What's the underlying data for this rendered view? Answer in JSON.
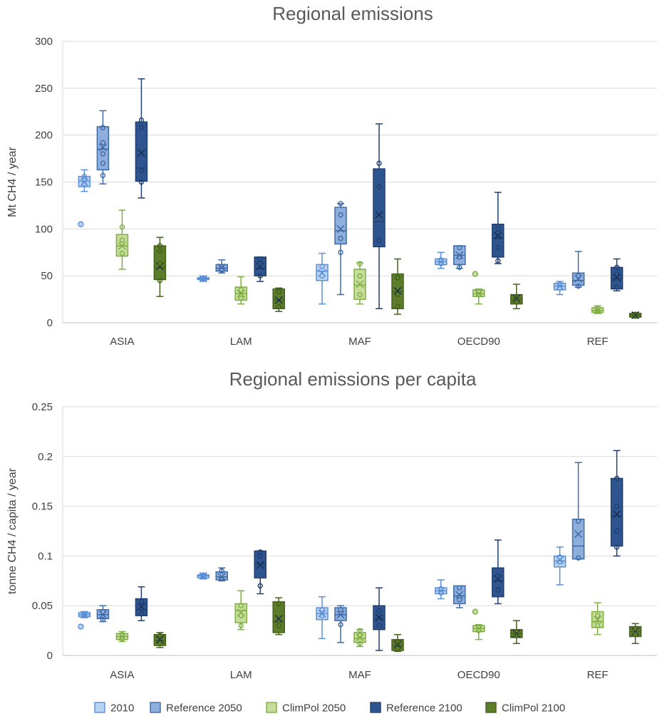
{
  "legend": [
    {
      "name": "2010",
      "fill": "#b8d3f2",
      "stroke": "#5b8fd6"
    },
    {
      "name": "Reference 2050",
      "fill": "#8eaedb",
      "stroke": "#3f6aa8"
    },
    {
      "name": "ClimPol 2050",
      "fill": "#c6dd9a",
      "stroke": "#7fae45"
    },
    {
      "name": "Reference 2100",
      "fill": "#2e558f",
      "stroke": "#203f6e"
    },
    {
      "name": "ClimPol 2100",
      "fill": "#5d7d2b",
      "stroke": "#44601c"
    }
  ],
  "chart_data": [
    {
      "type": "box",
      "title": "Regional emissions",
      "ylabel": "Mt CH4 / year",
      "ylim": [
        0,
        300
      ],
      "yticks": [
        "0",
        "50",
        "100",
        "150",
        "200",
        "250",
        "300"
      ],
      "ytick_values": [
        0,
        50,
        100,
        150,
        200,
        250,
        300
      ],
      "categories": [
        "ASIA",
        "LAM",
        "MAF",
        "OECD90",
        "REF"
      ],
      "grid": true,
      "series": [
        {
          "name": "2010",
          "boxes": [
            {
              "min": 140,
              "q1": 145,
              "median": 151,
              "q3": 156,
              "max": 163,
              "mean": 150,
              "points": [
                148,
                153,
                156
              ],
              "outliers": [
                105
              ]
            },
            {
              "min": 45,
              "q1": 46,
              "median": 47,
              "q3": 48,
              "max": 49,
              "mean": 47,
              "points": [
                46,
                48
              ],
              "outliers": []
            },
            {
              "min": 20,
              "q1": 45,
              "median": 55,
              "q3": 62,
              "max": 74,
              "mean": 53,
              "points": [
                50,
                60
              ],
              "outliers": []
            },
            {
              "min": 58,
              "q1": 62,
              "median": 65,
              "q3": 68,
              "max": 75,
              "mean": 65,
              "points": [
                63,
                67
              ],
              "outliers": []
            },
            {
              "min": 30,
              "q1": 35,
              "median": 39,
              "q3": 42,
              "max": 44,
              "mean": 39,
              "points": [
                37,
                41
              ],
              "outliers": []
            }
          ]
        },
        {
          "name": "Reference 2050",
          "boxes": [
            {
              "min": 148,
              "q1": 163,
              "median": 185,
              "q3": 209,
              "max": 226,
              "mean": 187,
              "points": [
                157,
                170,
                180,
                192,
                208
              ],
              "outliers": []
            },
            {
              "min": 53,
              "q1": 55,
              "median": 58,
              "q3": 62,
              "max": 67,
              "mean": 59,
              "points": [
                56,
                60
              ],
              "outliers": []
            },
            {
              "min": 30,
              "q1": 84,
              "median": 98,
              "q3": 123,
              "max": 127,
              "mean": 100,
              "points": [
                75,
                90,
                115,
                127
              ],
              "outliers": []
            },
            {
              "min": 58,
              "q1": 62,
              "median": 72,
              "q3": 82,
              "max": 82,
              "mean": 72,
              "points": [
                59,
                70,
                80
              ],
              "outliers": []
            },
            {
              "min": 38,
              "q1": 40,
              "median": 45,
              "q3": 53,
              "max": 76,
              "mean": 47,
              "points": [
                39,
                50
              ],
              "outliers": []
            }
          ]
        },
        {
          "name": "ClimPol 2050",
          "boxes": [
            {
              "min": 57,
              "q1": 71,
              "median": 82,
              "q3": 94,
              "max": 120,
              "mean": 82,
              "points": [
                74,
                88,
                102
              ],
              "outliers": []
            },
            {
              "min": 20,
              "q1": 24,
              "median": 31,
              "q3": 38,
              "max": 49,
              "mean": 31,
              "points": [
                26,
                35
              ],
              "outliers": []
            },
            {
              "min": 20,
              "q1": 25,
              "median": 40,
              "q3": 57,
              "max": 64,
              "mean": 41,
              "points": [
                30,
                50,
                63
              ],
              "outliers": []
            },
            {
              "min": 20,
              "q1": 28,
              "median": 31,
              "q3": 35,
              "max": 36,
              "mean": 31,
              "points": [
                30,
                33
              ],
              "outliers": [
                52
              ]
            },
            {
              "min": 10,
              "q1": 11,
              "median": 13,
              "q3": 16,
              "max": 18,
              "mean": 13,
              "points": [
                12,
                15
              ],
              "outliers": []
            }
          ]
        },
        {
          "name": "Reference 2100",
          "boxes": [
            {
              "min": 133,
              "q1": 151,
              "median": 165,
              "q3": 214,
              "max": 260,
              "mean": 181,
              "points": [
                150,
                162,
                208,
                216
              ],
              "outliers": []
            },
            {
              "min": 44,
              "q1": 50,
              "median": 58,
              "q3": 70,
              "max": 70,
              "mean": 60,
              "points": [
                50,
                63,
                68
              ],
              "outliers": []
            },
            {
              "min": 15,
              "q1": 81,
              "median": 108,
              "q3": 164,
              "max": 212,
              "mean": 115,
              "points": [
                88,
                145,
                170
              ],
              "outliers": []
            },
            {
              "min": 63,
              "q1": 70,
              "median": 90,
              "q3": 105,
              "max": 139,
              "mean": 93,
              "points": [
                66,
                80,
                100
              ],
              "outliers": []
            },
            {
              "min": 34,
              "q1": 36,
              "median": 47,
              "q3": 59,
              "max": 68,
              "mean": 48,
              "points": [
                38,
                52,
                59
              ],
              "outliers": []
            }
          ]
        },
        {
          "name": "ClimPol 2100",
          "boxes": [
            {
              "min": 28,
              "q1": 46,
              "median": 59,
              "q3": 82,
              "max": 91,
              "mean": 60,
              "points": [
                45,
                63,
                76,
                82
              ],
              "outliers": []
            },
            {
              "min": 12,
              "q1": 15,
              "median": 24,
              "q3": 36,
              "max": 37,
              "mean": 24,
              "points": [
                17,
                33
              ],
              "outliers": []
            },
            {
              "min": 9,
              "q1": 15,
              "median": 33,
              "q3": 52,
              "max": 68,
              "mean": 34,
              "points": [
                17,
                30,
                48
              ],
              "outliers": []
            },
            {
              "min": 15,
              "q1": 20,
              "median": 25,
              "q3": 30,
              "max": 41,
              "mean": 26,
              "points": [
                22,
                27
              ],
              "outliers": []
            },
            {
              "min": 5,
              "q1": 6,
              "median": 8,
              "q3": 10,
              "max": 11,
              "mean": 8,
              "points": [
                7,
                9
              ],
              "outliers": []
            }
          ]
        }
      ]
    },
    {
      "type": "box",
      "title": "Regional emissions per capita",
      "ylabel": "tonne CH4 / capita / year",
      "ylim": [
        0,
        0.25
      ],
      "yticks": [
        "0",
        "0.05",
        "0.1",
        "0.15",
        "0.2",
        "0.25"
      ],
      "ytick_values": [
        0,
        0.05,
        0.1,
        0.15,
        0.2,
        0.25
      ],
      "categories": [
        "ASIA",
        "LAM",
        "MAF",
        "OECD90",
        "REF"
      ],
      "grid": true,
      "series": [
        {
          "name": "2010",
          "boxes": [
            {
              "min": 0.038,
              "q1": 0.039,
              "median": 0.041,
              "q3": 0.043,
              "max": 0.044,
              "mean": 0.041,
              "points": [
                0.04,
                0.042
              ],
              "outliers": [
                0.029
              ]
            },
            {
              "min": 0.077,
              "q1": 0.078,
              "median": 0.08,
              "q3": 0.081,
              "max": 0.082,
              "mean": 0.08,
              "points": [
                0.079,
                0.081
              ],
              "outliers": []
            },
            {
              "min": 0.017,
              "q1": 0.036,
              "median": 0.042,
              "q3": 0.048,
              "max": 0.059,
              "mean": 0.042,
              "points": [
                0.04,
                0.046
              ],
              "outliers": []
            },
            {
              "min": 0.057,
              "q1": 0.062,
              "median": 0.065,
              "q3": 0.068,
              "max": 0.076,
              "mean": 0.065,
              "points": [
                0.063,
                0.067
              ],
              "outliers": []
            },
            {
              "min": 0.071,
              "q1": 0.089,
              "median": 0.095,
              "q3": 0.1,
              "max": 0.109,
              "mean": 0.096,
              "points": [
                0.094,
                0.099
              ],
              "outliers": []
            }
          ]
        },
        {
          "name": "Reference 2050",
          "boxes": [
            {
              "min": 0.034,
              "q1": 0.037,
              "median": 0.041,
              "q3": 0.046,
              "max": 0.05,
              "mean": 0.041,
              "points": [
                0.036,
                0.044
              ],
              "outliers": []
            },
            {
              "min": 0.075,
              "q1": 0.076,
              "median": 0.079,
              "q3": 0.084,
              "max": 0.088,
              "mean": 0.079,
              "points": [
                0.077,
                0.085
              ],
              "outliers": []
            },
            {
              "min": 0.013,
              "q1": 0.035,
              "median": 0.041,
              "q3": 0.048,
              "max": 0.05,
              "mean": 0.041,
              "points": [
                0.031,
                0.046
              ],
              "outliers": []
            },
            {
              "min": 0.048,
              "q1": 0.052,
              "median": 0.06,
              "q3": 0.07,
              "max": 0.07,
              "mean": 0.061,
              "points": [
                0.056,
                0.068
              ],
              "outliers": []
            },
            {
              "min": 0.097,
              "q1": 0.097,
              "median": 0.11,
              "q3": 0.137,
              "max": 0.194,
              "mean": 0.122,
              "points": [
                0.098,
                0.135
              ],
              "outliers": []
            }
          ]
        },
        {
          "name": "ClimPol 2050",
          "boxes": [
            {
              "min": 0.014,
              "q1": 0.016,
              "median": 0.019,
              "q3": 0.022,
              "max": 0.024,
              "mean": 0.019,
              "points": [
                0.017,
                0.021
              ],
              "outliers": []
            },
            {
              "min": 0.026,
              "q1": 0.033,
              "median": 0.045,
              "q3": 0.052,
              "max": 0.065,
              "mean": 0.043,
              "points": [
                0.03,
                0.04,
                0.05
              ],
              "outliers": []
            },
            {
              "min": 0.009,
              "q1": 0.013,
              "median": 0.017,
              "q3": 0.023,
              "max": 0.026,
              "mean": 0.018,
              "points": [
                0.012,
                0.02,
                0.025
              ],
              "outliers": []
            },
            {
              "min": 0.016,
              "q1": 0.024,
              "median": 0.027,
              "q3": 0.03,
              "max": 0.031,
              "mean": 0.027,
              "points": [
                0.025,
                0.029
              ],
              "outliers": [
                0.044
              ]
            },
            {
              "min": 0.021,
              "q1": 0.028,
              "median": 0.034,
              "q3": 0.044,
              "max": 0.053,
              "mean": 0.036,
              "points": [
                0.03,
                0.04
              ],
              "outliers": []
            }
          ]
        },
        {
          "name": "Reference 2100",
          "boxes": [
            {
              "min": 0.035,
              "q1": 0.04,
              "median": 0.046,
              "q3": 0.057,
              "max": 0.069,
              "mean": 0.049,
              "points": [
                0.042,
                0.054
              ],
              "outliers": []
            },
            {
              "min": 0.062,
              "q1": 0.078,
              "median": 0.092,
              "q3": 0.105,
              "max": 0.105,
              "mean": 0.091,
              "points": [
                0.07,
                0.1,
                0.104
              ],
              "outliers": []
            },
            {
              "min": 0.005,
              "q1": 0.026,
              "median": 0.037,
              "q3": 0.05,
              "max": 0.068,
              "mean": 0.038,
              "points": [
                0.03,
                0.045
              ],
              "outliers": []
            },
            {
              "min": 0.052,
              "q1": 0.059,
              "median": 0.075,
              "q3": 0.088,
              "max": 0.116,
              "mean": 0.077,
              "points": [
                0.066,
                0.08
              ],
              "outliers": []
            },
            {
              "min": 0.1,
              "q1": 0.11,
              "median": 0.14,
              "q3": 0.178,
              "max": 0.206,
              "mean": 0.142,
              "points": [
                0.109,
                0.125,
                0.15,
                0.178
              ],
              "outliers": []
            }
          ]
        },
        {
          "name": "ClimPol 2100",
          "boxes": [
            {
              "min": 0.008,
              "q1": 0.01,
              "median": 0.015,
              "q3": 0.021,
              "max": 0.023,
              "mean": 0.016,
              "points": [
                0.012,
                0.02
              ],
              "outliers": []
            },
            {
              "min": 0.021,
              "q1": 0.023,
              "median": 0.034,
              "q3": 0.054,
              "max": 0.058,
              "mean": 0.037,
              "points": [
                0.03,
                0.052
              ],
              "outliers": []
            },
            {
              "min": 0.004,
              "q1": 0.005,
              "median": 0.01,
              "q3": 0.016,
              "max": 0.021,
              "mean": 0.011,
              "points": [
                0.007,
                0.013
              ],
              "outliers": []
            },
            {
              "min": 0.012,
              "q1": 0.018,
              "median": 0.022,
              "q3": 0.026,
              "max": 0.035,
              "mean": 0.022,
              "points": [
                0.02,
                0.024
              ],
              "outliers": []
            },
            {
              "min": 0.012,
              "q1": 0.019,
              "median": 0.024,
              "q3": 0.029,
              "max": 0.032,
              "mean": 0.024,
              "points": [
                0.021,
                0.027
              ],
              "outliers": []
            }
          ]
        }
      ]
    }
  ]
}
